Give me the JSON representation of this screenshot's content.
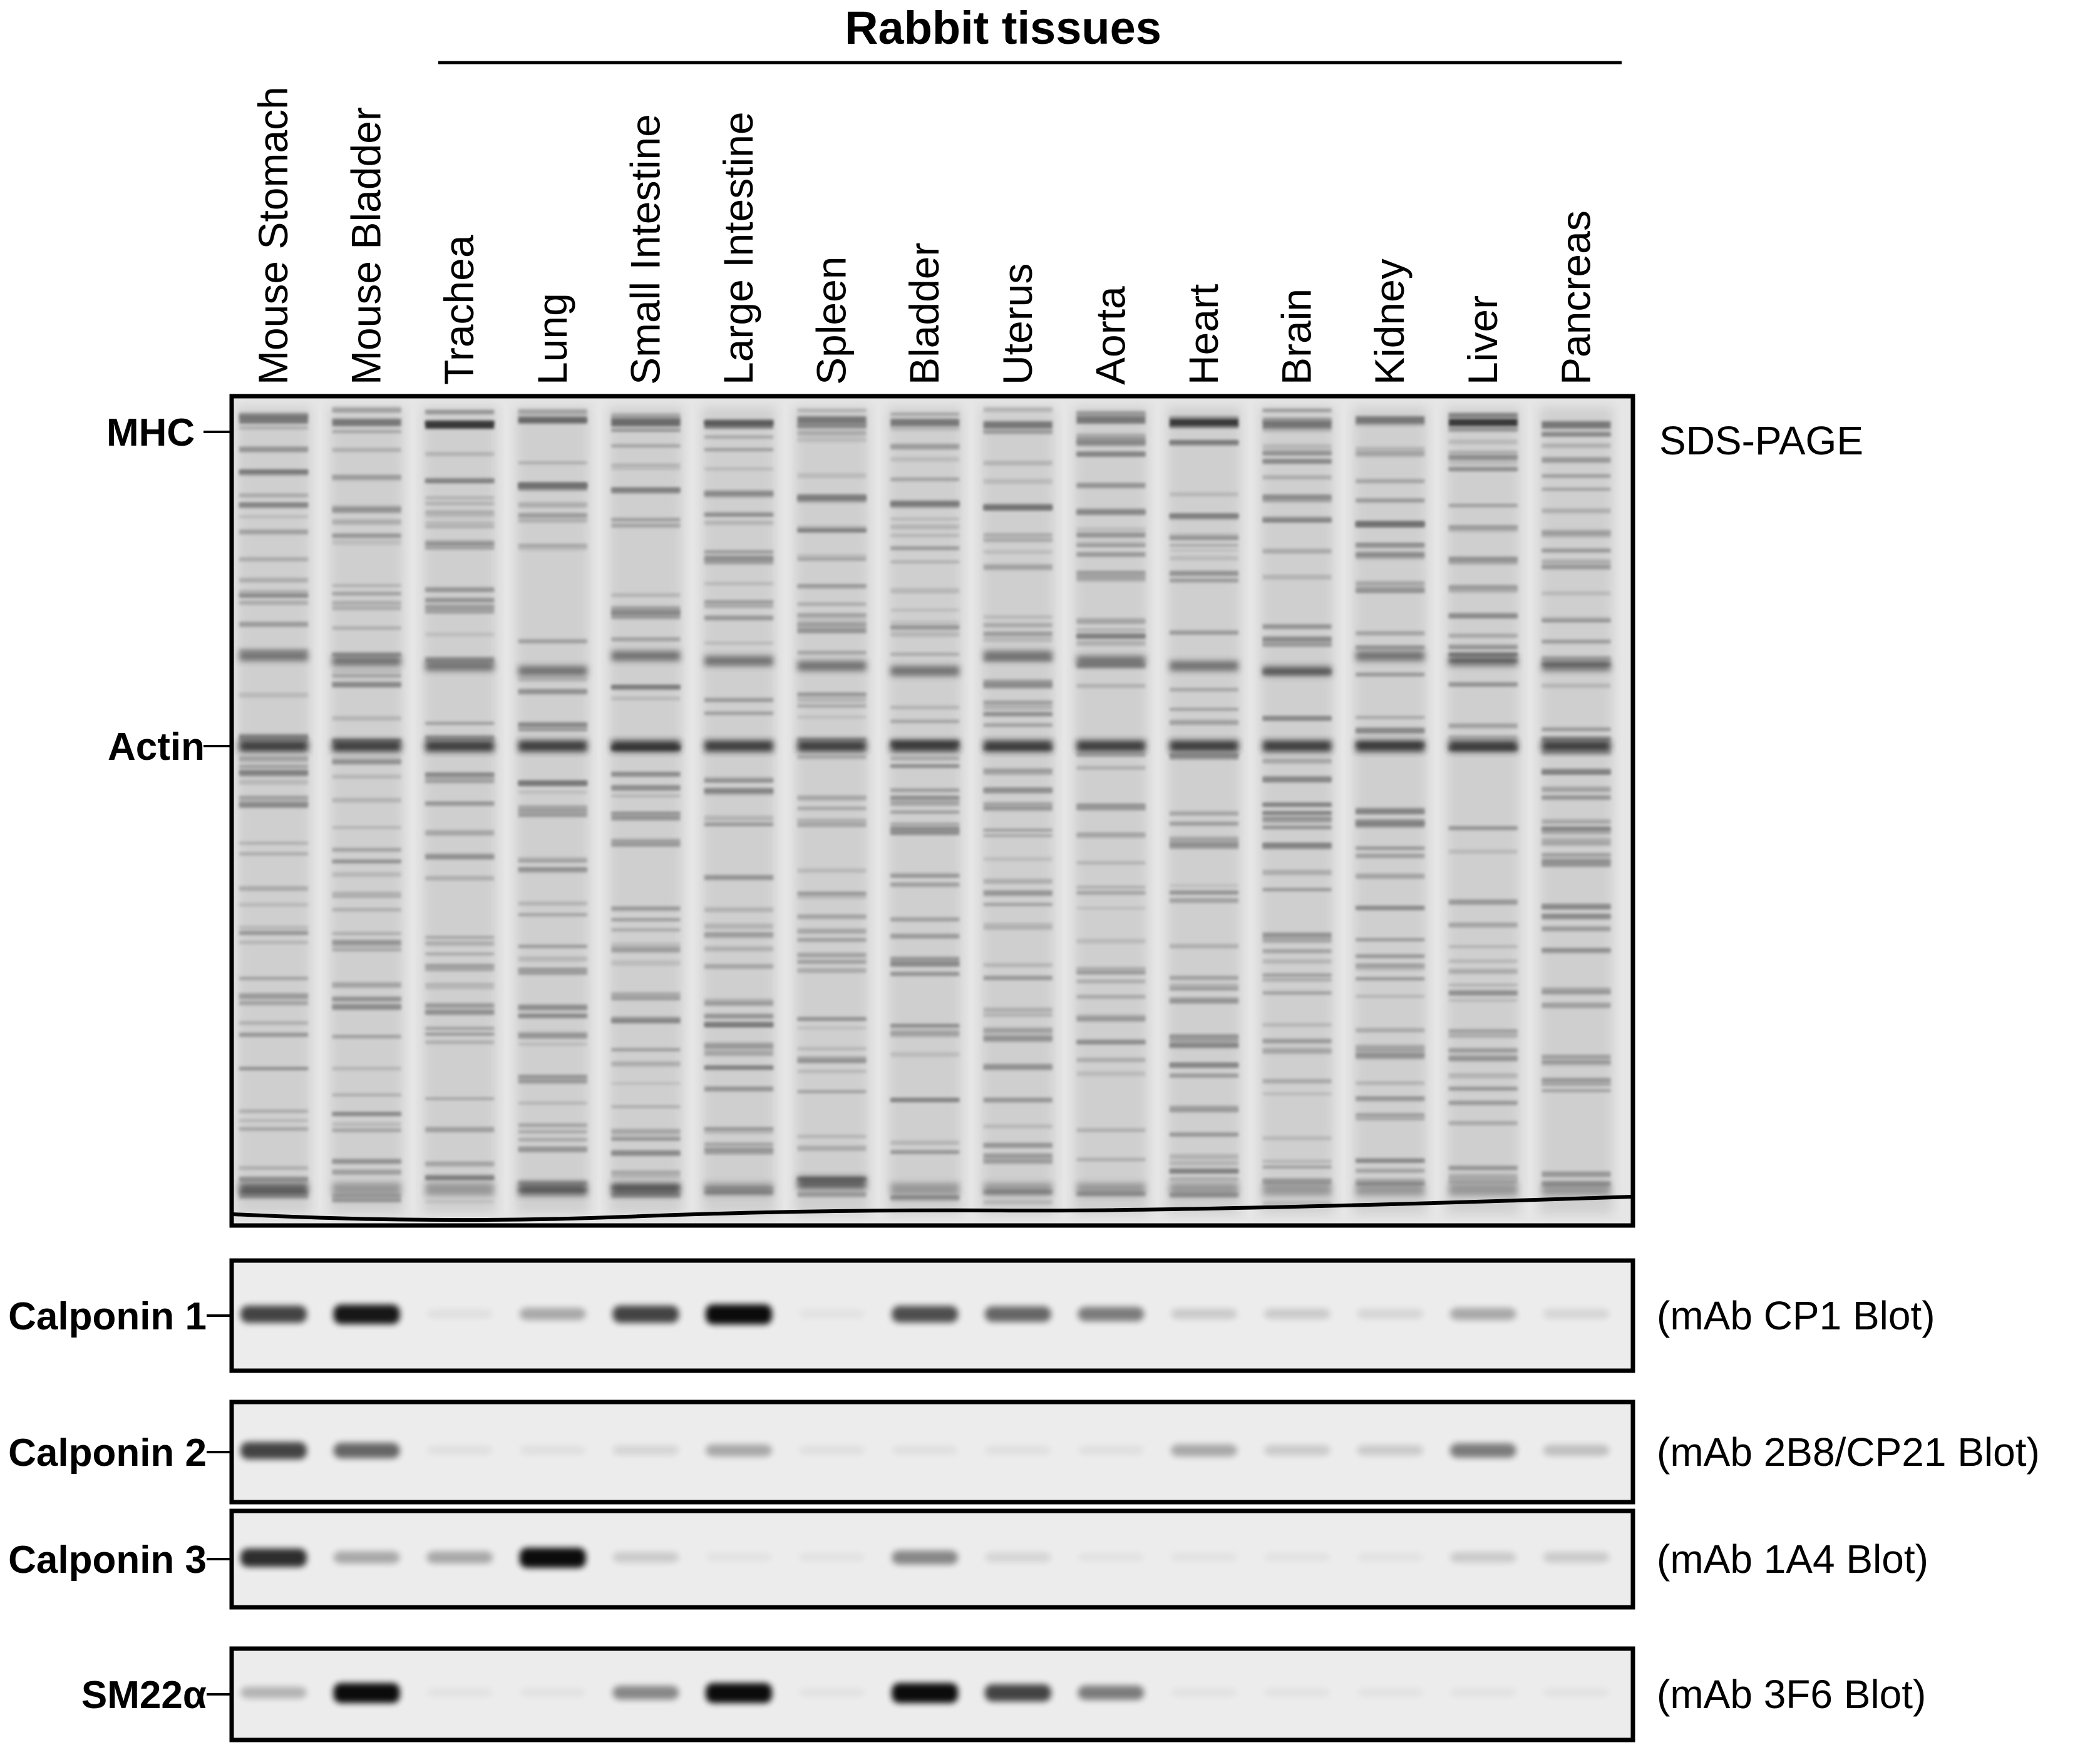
{
  "group_title": "Rabbit tissues",
  "lanes": [
    {
      "label": "Mouse Stomach"
    },
    {
      "label": "Mouse Bladder"
    },
    {
      "label": "Trachea"
    },
    {
      "label": "Lung"
    },
    {
      "label": "Small Intestine"
    },
    {
      "label": "Large Intestine"
    },
    {
      "label": "Spleen"
    },
    {
      "label": "Bladder"
    },
    {
      "label": "Uterus"
    },
    {
      "label": "Aorta"
    },
    {
      "label": "Heart"
    },
    {
      "label": "Brain"
    },
    {
      "label": "Kidney"
    },
    {
      "label": "Liver"
    },
    {
      "label": "Pancreas"
    }
  ],
  "gel": {
    "label": "SDS-PAGE",
    "markers": [
      {
        "label": "MHC"
      },
      {
        "label": "Actin"
      }
    ]
  },
  "blots": [
    {
      "marker": "Calponin 1",
      "label": "(mAb CP1 Blot)",
      "band_intensity": [
        0.75,
        0.95,
        0.05,
        0.3,
        0.75,
        1.0,
        0.0,
        0.7,
        0.6,
        0.5,
        0.15,
        0.15,
        0.1,
        0.3,
        0.1
      ]
    },
    {
      "marker": "Calponin 2",
      "label": "(mAb 2B8/CP21 Blot)",
      "band_intensity": [
        0.75,
        0.6,
        0.05,
        0.05,
        0.1,
        0.3,
        0.05,
        0.05,
        0.05,
        0.05,
        0.3,
        0.15,
        0.15,
        0.5,
        0.2
      ]
    },
    {
      "marker": "Calponin 3",
      "label": "(mAb 1A4 Blot)",
      "band_intensity": [
        0.85,
        0.3,
        0.3,
        1.0,
        0.15,
        0.0,
        0.0,
        0.45,
        0.1,
        0.0,
        0.0,
        0.0,
        0.0,
        0.15,
        0.15
      ]
    },
    {
      "marker": "SM22α",
      "label": "(mAb 3F6 Blot)",
      "band_intensity": [
        0.25,
        1.0,
        0.0,
        0.0,
        0.45,
        1.0,
        0.0,
        1.0,
        0.75,
        0.5,
        0.0,
        0.0,
        0.0,
        0.0,
        0.0
      ]
    }
  ],
  "colors": {
    "ink": "#000000",
    "gel_background": "#e6e6e6",
    "blot_background": "#ececec"
  }
}
